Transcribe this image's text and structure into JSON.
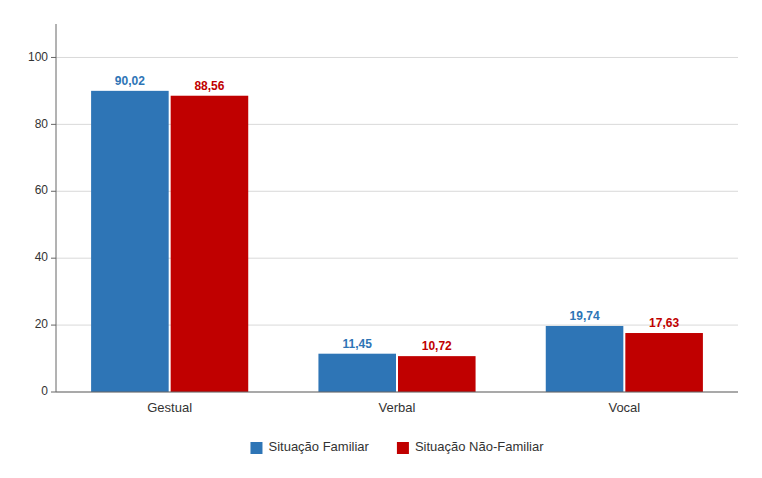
{
  "chart_data": {
    "type": "bar",
    "categories": [
      "Gestual",
      "Verbal",
      "Vocal"
    ],
    "series": [
      {
        "name": "Situação Familiar",
        "color": "#2E75B6",
        "values": [
          90.02,
          11.45,
          19.74
        ],
        "value_labels": [
          "90,02",
          "11,45",
          "19,74"
        ]
      },
      {
        "name": "Situação Não-Familiar",
        "color": "#C00000",
        "values": [
          88.56,
          10.72,
          17.63
        ],
        "value_labels": [
          "88,56",
          "10,72",
          "17,63"
        ]
      }
    ],
    "ylim": [
      0,
      110
    ],
    "yticks": [
      0,
      20,
      40,
      60,
      80,
      100
    ],
    "grid": true,
    "legend": "bottom",
    "data_labels": true
  }
}
